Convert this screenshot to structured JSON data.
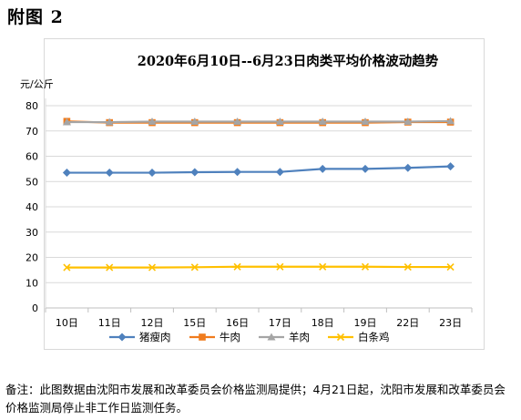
{
  "figure_label": "附图 2",
  "note": "备注：此图数据由沈阳市发展和改革委员会价格监测局提供；4月21日起，沈阳市发展和改革委员会价格监测局停止非工作日监测任务。",
  "chart_data": {
    "type": "line",
    "title": "2020年6月10日--6月23日肉类平均价格波动趋势",
    "ylabel": "元/公斤",
    "xlabel": "",
    "categories": [
      "10日",
      "11日",
      "12日",
      "15日",
      "16日",
      "17日",
      "18日",
      "19日",
      "22日",
      "23日"
    ],
    "ylim": [
      0,
      80
    ],
    "yticks": [
      0,
      10,
      20,
      30,
      40,
      50,
      60,
      70,
      80
    ],
    "grid": true,
    "legend": "bottom",
    "series": [
      {
        "name": "猪瘦肉",
        "color": "#4f81bd",
        "marker": "diamond",
        "values": [
          53.5,
          53.5,
          53.5,
          53.7,
          53.8,
          53.8,
          55.0,
          55.0,
          55.4,
          56.0
        ]
      },
      {
        "name": "牛肉",
        "color": "#f07c1e",
        "marker": "square",
        "values": [
          73.8,
          73.3,
          73.3,
          73.3,
          73.3,
          73.3,
          73.3,
          73.3,
          73.5,
          73.5
        ]
      },
      {
        "name": "羊肉",
        "color": "#a5a5a5",
        "marker": "triangle",
        "values": [
          73.5,
          73.5,
          73.7,
          73.7,
          73.7,
          73.7,
          73.7,
          73.7,
          73.7,
          73.9
        ]
      },
      {
        "name": "白条鸡",
        "color": "#ffc000",
        "marker": "x",
        "values": [
          16.0,
          16.0,
          16.0,
          16.1,
          16.3,
          16.3,
          16.3,
          16.3,
          16.2,
          16.2
        ]
      }
    ]
  }
}
